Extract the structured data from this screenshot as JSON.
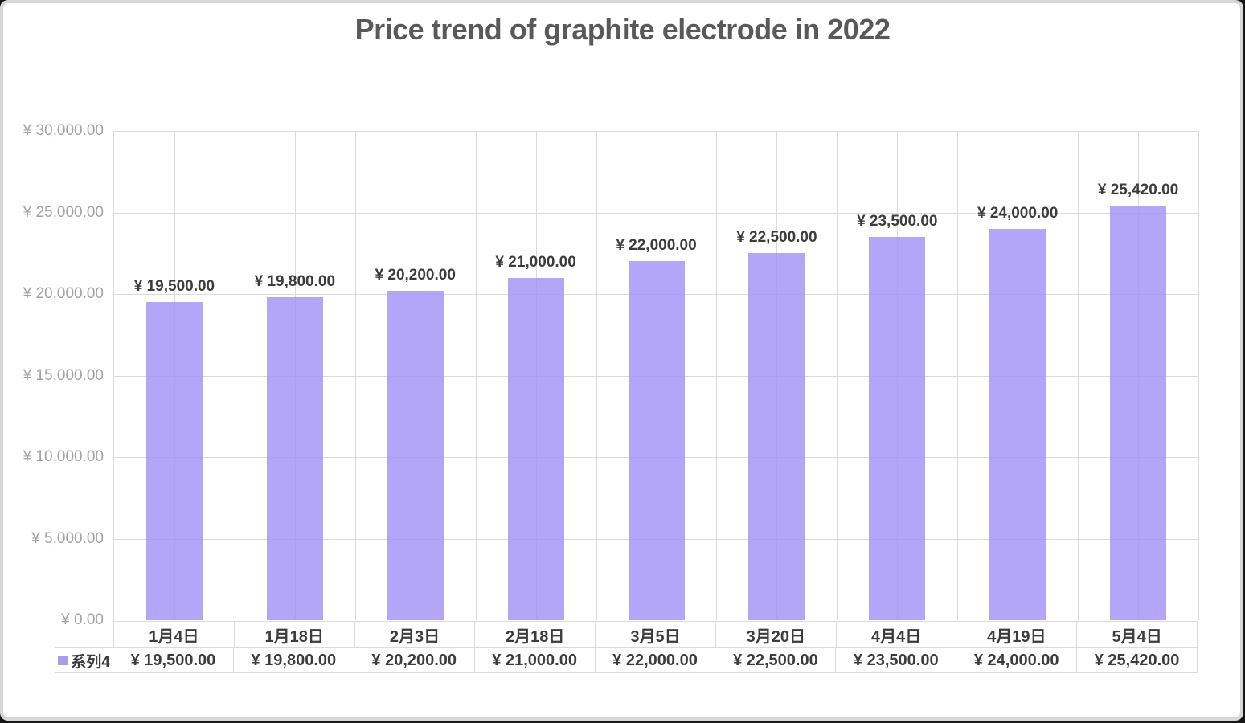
{
  "chart": {
    "title": "Price trend of graphite electrode in 2022",
    "series_label": "系列4",
    "colors": {
      "bar_fill_rgba": "rgba(162,146,246,0.82)",
      "bar_fill_hex": "#B4A8F6",
      "legend_swatch": "#AA9BEE",
      "gridline": "#DBDBDB",
      "tick_text": "#A3A3A3",
      "label_text": "#3C3C3C",
      "title_text": "#595959"
    }
  },
  "chart_data": {
    "type": "bar",
    "title": "Price trend of graphite electrode in 2022",
    "categories": [
      "1月4日",
      "1月18日",
      "2月3日",
      "2月18日",
      "3月5日",
      "3月20日",
      "4月4日",
      "4月19日",
      "5月4日"
    ],
    "series": [
      {
        "name": "系列4",
        "values": [
          19500,
          19800,
          20200,
          21000,
          22000,
          22500,
          23500,
          24000,
          25420
        ]
      }
    ],
    "value_labels": [
      "¥ 19,500.00",
      "¥ 19,800.00",
      "¥ 20,200.00",
      "¥ 21,000.00",
      "¥ 22,000.00",
      "¥ 22,500.00",
      "¥ 23,500.00",
      "¥ 24,000.00",
      "¥ 25,420.00"
    ],
    "y_tick_labels": [
      "¥ 30,000.00",
      "¥ 25,000.00",
      "¥ 20,000.00",
      "¥ 15,000.00",
      "¥ 10,000.00",
      "¥ 5,000.00",
      "¥ 0.00"
    ],
    "xlabel": "",
    "ylabel": "",
    "ylim": [
      0,
      30000
    ],
    "y_tick_step": 5000,
    "grid": true,
    "data_labels_shown": true,
    "legend_position": "bottom-left-of-data-table",
    "data_table_shown": true
  }
}
